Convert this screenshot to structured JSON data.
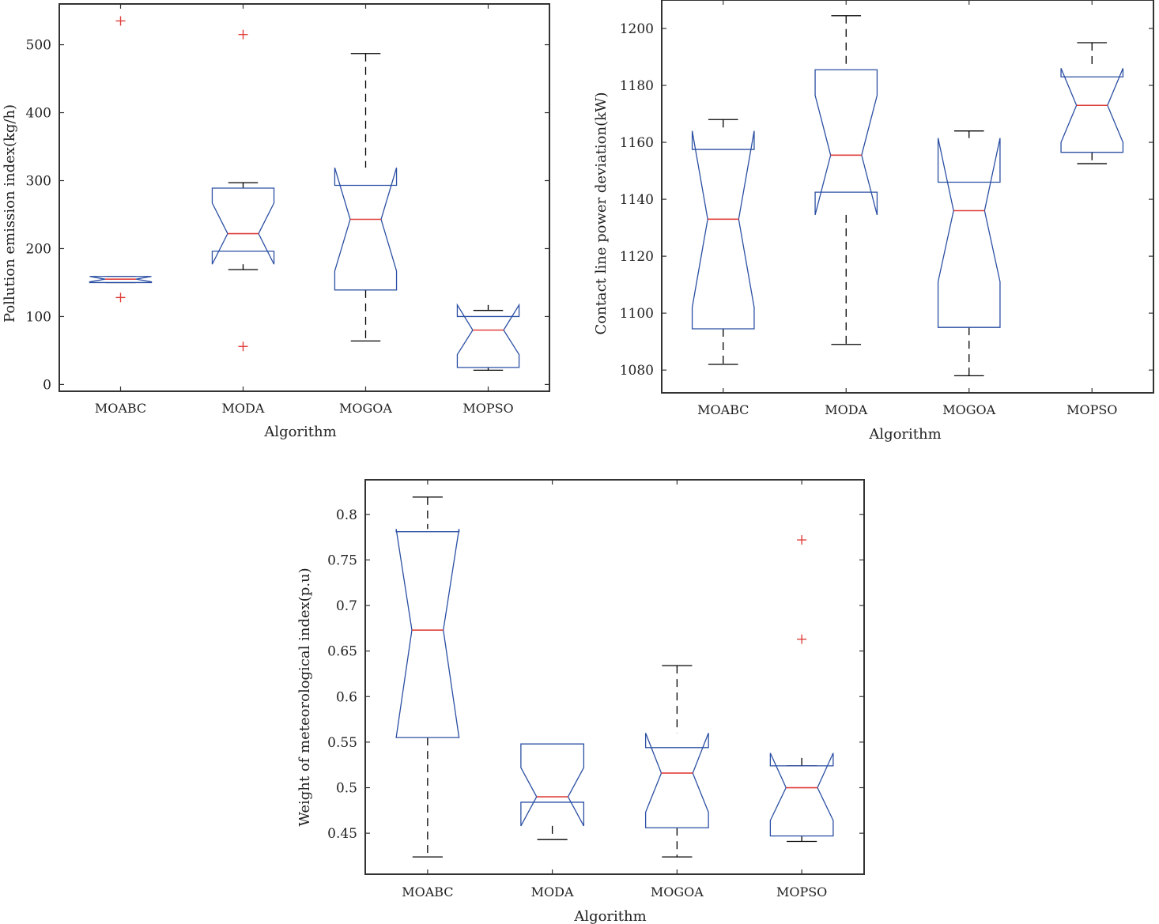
{
  "colors": {
    "box": "#2b4fa3",
    "median": "#e0403c",
    "whisker": "#000000",
    "outlier": "#e0403c",
    "frame": "#333333"
  },
  "chart_data": [
    {
      "type": "boxplot",
      "notched": true,
      "xlabel": "Algorithm",
      "ylabel": "Pollution emission index(kg/h)",
      "categories": [
        "MOABC",
        "MODA",
        "MOGOA",
        "MOPSO"
      ],
      "ylim": [
        -10,
        560
      ],
      "yticks": [
        0,
        100,
        200,
        300,
        400,
        500
      ],
      "yticklabels": [
        "0",
        "100",
        "200",
        "300",
        "400",
        "500"
      ],
      "grid": false,
      "boxes": [
        {
          "category": "MOABC",
          "whisker_low": 150,
          "q1": 150,
          "median": 155,
          "q3": 159,
          "whisker_high": 159,
          "notch_low": 151,
          "notch_high": 159,
          "outliers": [
            535,
            128
          ]
        },
        {
          "category": "MODA",
          "whisker_low": 169,
          "q1": 196,
          "median": 222,
          "q3": 289,
          "whisker_high": 297,
          "notch_low": 177,
          "notch_high": 267,
          "outliers": [
            515,
            56
          ]
        },
        {
          "category": "MOGOA",
          "whisker_low": 64,
          "q1": 139,
          "median": 243,
          "q3": 293,
          "whisker_high": 487,
          "notch_low": 167,
          "notch_high": 319,
          "outliers": []
        },
        {
          "category": "MOPSO",
          "whisker_low": 21,
          "q1": 25,
          "median": 80,
          "q3": 100,
          "whisker_high": 109,
          "notch_low": 44,
          "notch_high": 117,
          "outliers": []
        }
      ]
    },
    {
      "type": "boxplot",
      "notched": true,
      "xlabel": "Algorithm",
      "ylabel": "Contact line power deviation(kW)",
      "categories": [
        "MOABC",
        "MODA",
        "MOGOA",
        "MOPSO"
      ],
      "ylim": [
        1072,
        1210
      ],
      "yticks": [
        1080,
        1100,
        1120,
        1140,
        1160,
        1180,
        1200
      ],
      "yticklabels": [
        "1080",
        "1100",
        "1120",
        "1140",
        "1160",
        "1180",
        "1200"
      ],
      "grid": false,
      "boxes": [
        {
          "category": "MOABC",
          "whisker_low": 1082,
          "q1": 1094.5,
          "median": 1133,
          "q3": 1157.5,
          "whisker_high": 1168,
          "notch_low": 1102,
          "notch_high": 1164,
          "outliers": []
        },
        {
          "category": "MODA",
          "whisker_low": 1089,
          "q1": 1142.5,
          "median": 1155.5,
          "q3": 1185.5,
          "whisker_high": 1204.5,
          "notch_low": 1134.5,
          "notch_high": 1176.5,
          "outliers": []
        },
        {
          "category": "MOGOA",
          "whisker_low": 1078,
          "q1": 1095,
          "median": 1136,
          "q3": 1146,
          "whisker_high": 1164,
          "notch_low": 1111,
          "notch_high": 1161.5,
          "outliers": []
        },
        {
          "category": "MOPSO",
          "whisker_low": 1152.5,
          "q1": 1156.5,
          "median": 1173,
          "q3": 1183,
          "whisker_high": 1195,
          "notch_low": 1160,
          "notch_high": 1186,
          "outliers": []
        }
      ]
    },
    {
      "type": "boxplot",
      "notched": true,
      "xlabel": "Algorithm",
      "ylabel": "Weight of meteorological index(p.u)",
      "categories": [
        "MOABC",
        "MODA",
        "MOGOA",
        "MOPSO"
      ],
      "ylim": [
        0.405,
        0.838
      ],
      "yticks": [
        0.45,
        0.5,
        0.55,
        0.6,
        0.65,
        0.7,
        0.75,
        0.8
      ],
      "yticklabels": [
        "0.45",
        "0.5",
        "0.55",
        "0.6",
        "0.65",
        "0.7",
        "0.75",
        "0.8"
      ],
      "grid": false,
      "boxes": [
        {
          "category": "MOABC",
          "whisker_low": 0.424,
          "q1": 0.555,
          "median": 0.673,
          "q3": 0.781,
          "whisker_high": 0.819,
          "notch_low": 0.555,
          "notch_high": 0.784,
          "outliers": []
        },
        {
          "category": "MODA",
          "whisker_low": 0.443,
          "q1": 0.484,
          "median": 0.49,
          "q3": 0.548,
          "whisker_high": 0.548,
          "notch_low": 0.458,
          "notch_high": 0.522,
          "outliers": []
        },
        {
          "category": "MOGOA",
          "whisker_low": 0.424,
          "q1": 0.456,
          "median": 0.516,
          "q3": 0.544,
          "whisker_high": 0.634,
          "notch_low": 0.473,
          "notch_high": 0.56,
          "outliers": []
        },
        {
          "category": "MOPSO",
          "whisker_low": 0.441,
          "q1": 0.447,
          "median": 0.5,
          "q3": 0.524,
          "whisker_high": 0.524,
          "notch_low": 0.464,
          "notch_high": 0.538,
          "outliers": [
            0.772,
            0.663
          ]
        }
      ]
    }
  ]
}
